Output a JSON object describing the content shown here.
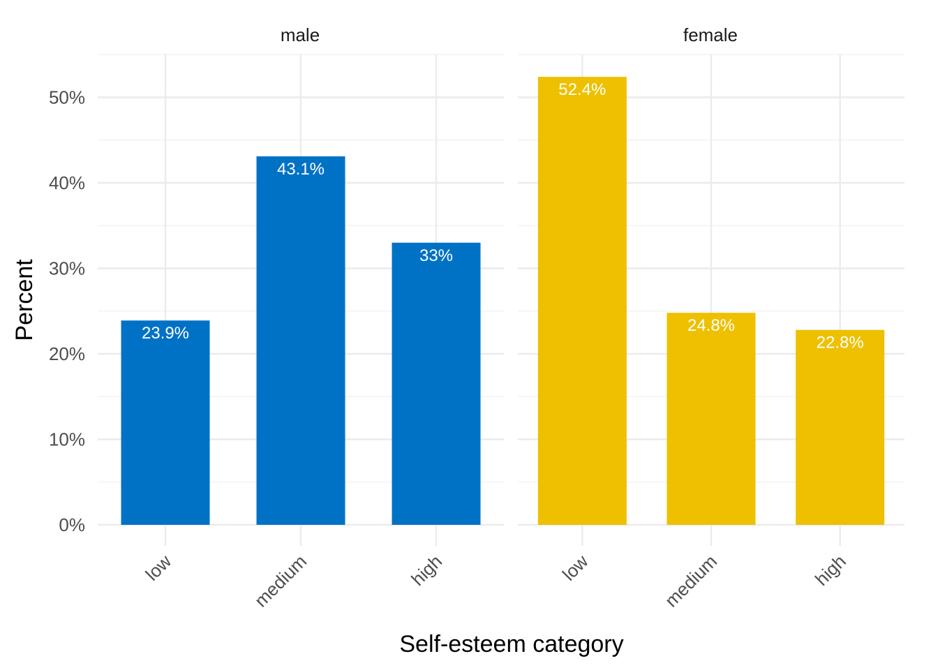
{
  "chart_data": {
    "type": "bar",
    "xlabel": "Self-esteem category",
    "ylabel": "Percent",
    "ylim": [
      0,
      55
    ],
    "yticks": [
      0,
      10,
      20,
      30,
      40,
      50
    ],
    "ytick_labels": [
      "0%",
      "10%",
      "20%",
      "30%",
      "40%",
      "50%"
    ],
    "grid": true,
    "legend": "none",
    "categories": [
      "low",
      "medium",
      "high"
    ],
    "facets": [
      {
        "name": "male",
        "color": "#0072C6",
        "values": [
          23.9,
          43.1,
          33.0
        ],
        "labels": [
          "23.9%",
          "43.1%",
          "33%"
        ]
      },
      {
        "name": "female",
        "color": "#EEC000",
        "values": [
          52.4,
          24.8,
          22.8
        ],
        "labels": [
          "52.4%",
          "24.8%",
          "22.8%"
        ]
      }
    ]
  }
}
